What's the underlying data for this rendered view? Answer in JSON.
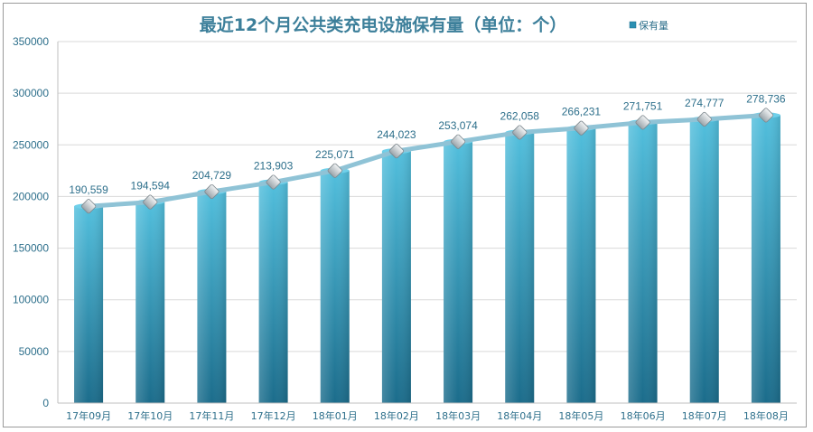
{
  "chart_data": {
    "type": "bar",
    "title": "最近12个月公共类充电设施保有量（单位：个）",
    "categories": [
      "17年09月",
      "17年10月",
      "17年11月",
      "17年12月",
      "18年01月",
      "18年02月",
      "18年03月",
      "18年04月",
      "18年05月",
      "18年06月",
      "18年07月",
      "18年08月"
    ],
    "series": [
      {
        "name": "保有量",
        "values": [
          190559,
          194594,
          204729,
          213903,
          225071,
          244023,
          253074,
          262058,
          266231,
          271751,
          274777,
          278736
        ]
      }
    ],
    "data_labels": [
      "190,559",
      "194,594",
      "204,729",
      "213,903",
      "225,071",
      "244,023",
      "253,074",
      "262,058",
      "266,231",
      "271,751",
      "274,777",
      "278,736"
    ],
    "overlay_line": true,
    "ylim": [
      0,
      350000
    ],
    "yticks": [
      0,
      50000,
      100000,
      150000,
      200000,
      250000,
      300000,
      350000
    ],
    "ytick_labels": [
      "0",
      "50000",
      "100000",
      "150000",
      "200000",
      "250000",
      "300000",
      "350000"
    ],
    "grid": true,
    "legend_position": "top-right",
    "colors": {
      "bar_top": "#48b6d6",
      "bar_bottom": "#1e7191",
      "line": "#8fc3d6",
      "marker": "#c9cfd3",
      "text": "#2d6f8b",
      "grid": "#d9d9d9"
    }
  }
}
